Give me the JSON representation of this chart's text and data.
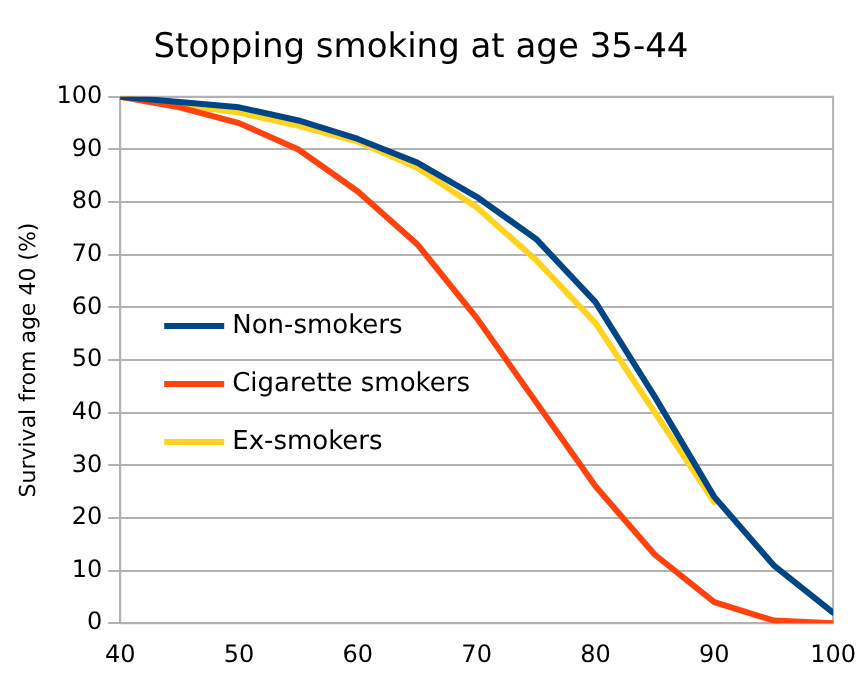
{
  "chart_data": {
    "type": "line",
    "title": "Stopping smoking at age 35-44",
    "ylabel": "Survival from age 40 (%)",
    "x": [
      40,
      45,
      50,
      55,
      60,
      65,
      70,
      75,
      80,
      85,
      90,
      95,
      100
    ],
    "series": [
      {
        "name": "Non-smokers",
        "color": "#004586",
        "values": [
          100,
          99,
          98,
          95.5,
          92,
          87.5,
          81,
          73,
          61,
          43,
          24,
          11,
          2
        ]
      },
      {
        "name": "Cigarette smokers",
        "color": "#ff420e",
        "values": [
          100,
          98,
          95,
          90,
          82,
          72,
          58,
          42,
          26,
          13,
          4,
          0.5,
          0
        ]
      },
      {
        "name": "Ex-smokers",
        "color": "#ffd320",
        "values": [
          100,
          98.5,
          97,
          94.5,
          91.5,
          86.5,
          79,
          69,
          57,
          40,
          23,
          null,
          null
        ]
      }
    ],
    "xlim": [
      40,
      100
    ],
    "xticks": [
      40,
      50,
      60,
      70,
      80,
      90,
      100
    ],
    "ylim": [
      0,
      100
    ],
    "yticks": [
      0,
      10,
      20,
      30,
      40,
      50,
      60,
      70,
      80,
      90,
      100
    ],
    "grid": "y",
    "legend": "left",
    "marker": "none",
    "line_style": "solid"
  }
}
